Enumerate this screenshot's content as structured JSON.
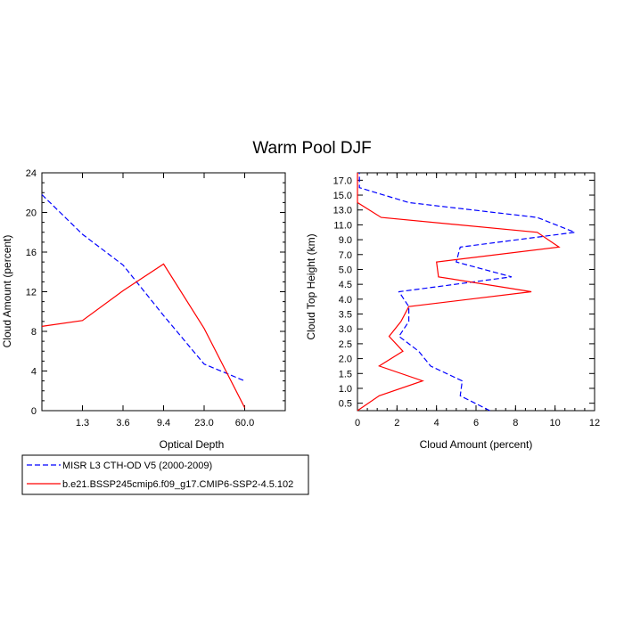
{
  "figure": {
    "title": "Warm Pool DJF"
  },
  "chart_data": [
    {
      "type": "line",
      "xlabel": "Optical Depth",
      "ylabel": "Cloud Amount (percent)",
      "x_categories": [
        "1.3",
        "3.6",
        "9.4",
        "23.0",
        "60.0"
      ],
      "ylim": [
        0,
        24
      ],
      "yticks": [
        "0",
        "4",
        "8",
        "12",
        "16",
        "20",
        "24"
      ],
      "grid": false,
      "series": [
        {
          "name": "MISR L3 CTH-OD V5 (2000-2009)",
          "color": "#0000ff",
          "dash": "dashed",
          "x_index": [
            0,
            1,
            2,
            3,
            4,
            5
          ],
          "values": [
            21.8,
            17.8,
            14.7,
            9.6,
            4.7,
            3.0
          ]
        },
        {
          "name": "b.e21.BSSP245cmip6.f09_g17.CMIP6-SSP2-4.5.102",
          "color": "#ff0000",
          "dash": "solid",
          "x_index": [
            0,
            1,
            2,
            3,
            4,
            5
          ],
          "values": [
            8.5,
            9.1,
            12.1,
            14.8,
            8.3,
            0.3
          ]
        }
      ]
    },
    {
      "type": "line",
      "xlabel": "Cloud Amount (percent)",
      "ylabel": "Cloud Top Height (km)",
      "xlim": [
        0,
        12
      ],
      "xticks": [
        "0",
        "2",
        "4",
        "6",
        "8",
        "10",
        "12"
      ],
      "y_levels": [
        "0.5",
        "1.0",
        "1.5",
        "2.0",
        "2.5",
        "3.0",
        "3.5",
        "4.0",
        "4.5",
        "5.0",
        "7.0",
        "9.0",
        "11.0",
        "13.0",
        "15.0",
        "17.0"
      ],
      "grid": false,
      "series": [
        {
          "name": "MISR L3 CTH-OD V5 (2000-2009)",
          "color": "#0000ff",
          "dash": "dashed",
          "height_index": [
            0,
            1,
            2,
            3,
            4,
            5,
            6,
            7,
            8,
            9,
            10,
            11,
            12,
            13,
            14,
            15,
            16
          ],
          "values": [
            6.7,
            5.2,
            5.3,
            3.7,
            3.1,
            2.1,
            2.6,
            2.6,
            2.1,
            7.8,
            5.0,
            5.2,
            11.0,
            9.1,
            2.6,
            0.1,
            0.1
          ]
        },
        {
          "name": "b.e21.BSSP245cmip6.f09_g17.CMIP6-SSP2-4.5.102",
          "color": "#ff0000",
          "dash": "solid",
          "height_index": [
            0,
            1,
            2,
            3,
            4,
            5,
            6,
            7,
            8,
            9,
            10,
            11,
            12,
            13,
            14,
            15,
            16
          ],
          "values": [
            0.0,
            1.1,
            3.3,
            1.1,
            2.3,
            1.6,
            2.2,
            2.6,
            8.8,
            4.1,
            4.0,
            10.2,
            9.1,
            1.2,
            0.0,
            0.0,
            0.0
          ]
        }
      ]
    }
  ],
  "legend": {
    "items": [
      {
        "label": "MISR L3 CTH-OD V5 (2000-2009)",
        "color": "#0000ff",
        "dash": "dashed"
      },
      {
        "label": "b.e21.BSSP245cmip6.f09_g17.CMIP6-SSP2-4.5.102",
        "color": "#ff0000",
        "dash": "solid"
      }
    ]
  }
}
